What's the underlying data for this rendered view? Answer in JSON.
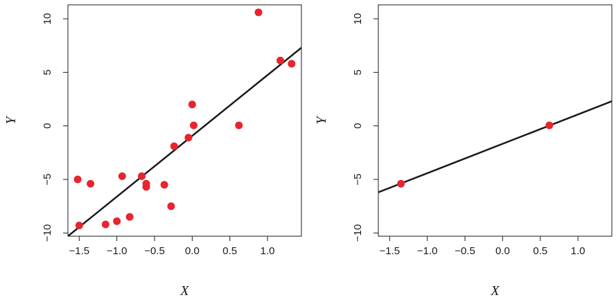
{
  "chart_data": [
    {
      "type": "scatter",
      "xlabel": "X",
      "ylabel": "Y",
      "xlim": [
        -1.65,
        1.45
      ],
      "ylim": [
        -10.3,
        11.3
      ],
      "xticks": [
        -1.5,
        -1.0,
        -0.5,
        0.0,
        0.5,
        1.0
      ],
      "xtick_labels": [
        "−1.5",
        "−1.0",
        "−0.5",
        "0.0",
        "0.5",
        "1.0"
      ],
      "yticks": [
        -10,
        -5,
        0,
        5,
        10
      ],
      "ytick_labels": [
        "−10",
        "−5",
        "0",
        "5",
        "10"
      ],
      "grid": false,
      "point_color": "#e8242e",
      "line_color": "#1a1a1a",
      "points": [
        {
          "x": -1.52,
          "y": -5.0
        },
        {
          "x": -1.35,
          "y": -5.4
        },
        {
          "x": -1.5,
          "y": -9.3
        },
        {
          "x": -1.15,
          "y": -9.2
        },
        {
          "x": -1.0,
          "y": -8.9
        },
        {
          "x": -0.93,
          "y": -4.7
        },
        {
          "x": -0.83,
          "y": -8.5
        },
        {
          "x": -0.67,
          "y": -4.7
        },
        {
          "x": -0.61,
          "y": -5.4
        },
        {
          "x": -0.61,
          "y": -5.7
        },
        {
          "x": -0.37,
          "y": -5.5
        },
        {
          "x": -0.28,
          "y": -7.5
        },
        {
          "x": -0.24,
          "y": -1.9
        },
        {
          "x": -0.05,
          "y": -1.1
        },
        {
          "x": 0.0,
          "y": 2.0
        },
        {
          "x": 0.02,
          "y": 0.05
        },
        {
          "x": 0.62,
          "y": 0.05
        },
        {
          "x": 0.88,
          "y": 10.6
        },
        {
          "x": 1.17,
          "y": 6.1
        },
        {
          "x": 1.32,
          "y": 5.8
        }
      ],
      "line": {
        "x": [
          -1.65,
          1.45
        ],
        "y": [
          -10.3,
          7.3
        ]
      }
    },
    {
      "type": "scatter",
      "xlabel": "X",
      "ylabel": "Y",
      "xlim": [
        -1.65,
        1.45
      ],
      "ylim": [
        -10.3,
        11.3
      ],
      "xticks": [
        -1.5,
        -1.0,
        -0.5,
        0.0,
        0.5,
        1.0
      ],
      "xtick_labels": [
        "−1.5",
        "−1.0",
        "−0.5",
        "0.0",
        "0.5",
        "1.0"
      ],
      "yticks": [
        -10,
        -5,
        0,
        5,
        10
      ],
      "ytick_labels": [
        "−10",
        "−5",
        "0",
        "5",
        "10"
      ],
      "grid": false,
      "point_color": "#e8242e",
      "line_color": "#1a1a1a",
      "points": [
        {
          "x": -1.35,
          "y": -5.4
        },
        {
          "x": 0.62,
          "y": 0.05
        }
      ],
      "line": {
        "x": [
          -1.65,
          1.45
        ],
        "y": [
          -6.2,
          2.3
        ]
      }
    }
  ]
}
